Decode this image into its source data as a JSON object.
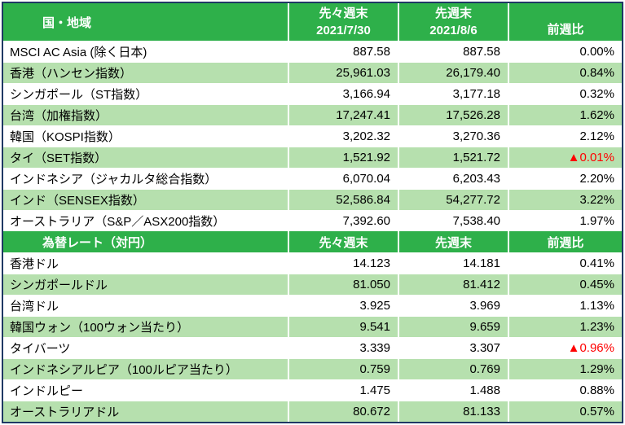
{
  "colors": {
    "header_bg": "#2EB04A",
    "alt_row_bg": "#B6E0AE",
    "border": "#1F3864",
    "negative": "#FF0000",
    "header_text": "#FFFFFF"
  },
  "chart_data": [
    {
      "type": "table",
      "columns": {
        "region": "国・地域",
        "prev2_label": "先々週末",
        "prev2_date": "2021/7/30",
        "prev1_label": "先週末",
        "prev1_date": "2021/8/6",
        "change": "前週比"
      },
      "rows": [
        {
          "name": "MSCI AC Asia (除く日本)",
          "prev2": "887.58",
          "prev1": "887.58",
          "change": "0.00%",
          "negative": false
        },
        {
          "name": "香港（ハンセン指数）",
          "prev2": "25,961.03",
          "prev1": "26,179.40",
          "change": "0.84%",
          "negative": false
        },
        {
          "name": "シンガポール（ST指数）",
          "prev2": "3,166.94",
          "prev1": "3,177.18",
          "change": "0.32%",
          "negative": false
        },
        {
          "name": "台湾（加権指数）",
          "prev2": "17,247.41",
          "prev1": "17,526.28",
          "change": "1.62%",
          "negative": false
        },
        {
          "name": "韓国（KOSPI指数）",
          "prev2": "3,202.32",
          "prev1": "3,270.36",
          "change": "2.12%",
          "negative": false
        },
        {
          "name": "タイ（SET指数）",
          "prev2": "1,521.92",
          "prev1": "1,521.72",
          "change": "▲0.01%",
          "negative": true
        },
        {
          "name": "インドネシア（ジャカルタ総合指数）",
          "prev2": "6,070.04",
          "prev1": "6,203.43",
          "change": "2.20%",
          "negative": false
        },
        {
          "name": "インド（SENSEX指数）",
          "prev2": "52,586.84",
          "prev1": "54,277.72",
          "change": "3.22%",
          "negative": false
        },
        {
          "name": "オーストラリア（S&P／ASX200指数）",
          "prev2": "7,392.60",
          "prev1": "7,538.40",
          "change": "1.97%",
          "negative": false
        }
      ]
    },
    {
      "type": "table",
      "columns": {
        "region": "為替レート（対円）",
        "prev2_label": "先々週末",
        "prev1_label": "先週末",
        "change": "前週比"
      },
      "rows": [
        {
          "name": "香港ドル",
          "prev2": "14.123",
          "prev1": "14.181",
          "change": "0.41%",
          "negative": false
        },
        {
          "name": "シンガポールドル",
          "prev2": "81.050",
          "prev1": "81.412",
          "change": "0.45%",
          "negative": false
        },
        {
          "name": "台湾ドル",
          "prev2": "3.925",
          "prev1": "3.969",
          "change": "1.13%",
          "negative": false
        },
        {
          "name": "韓国ウォン（100ウォン当たり）",
          "prev2": "9.541",
          "prev1": "9.659",
          "change": "1.23%",
          "negative": false
        },
        {
          "name": "タイバーツ",
          "prev2": "3.339",
          "prev1": "3.307",
          "change": "▲0.96%",
          "negative": true
        },
        {
          "name": "インドネシアルピア（100ルピア当たり）",
          "prev2": "0.759",
          "prev1": "0.769",
          "change": "1.29%",
          "negative": false
        },
        {
          "name": "インドルピー",
          "prev2": "1.475",
          "prev1": "1.488",
          "change": "0.88%",
          "negative": false
        },
        {
          "name": "オーストラリアドル",
          "prev2": "80.672",
          "prev1": "81.133",
          "change": "0.57%",
          "negative": false
        }
      ]
    }
  ]
}
